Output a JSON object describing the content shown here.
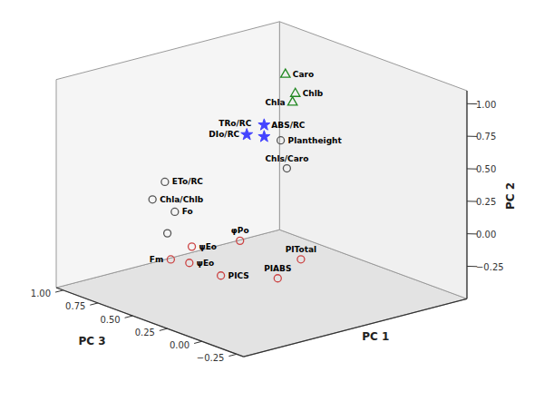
{
  "chart_data": {
    "type": "scatter3d",
    "xlabel": "PC 1",
    "ylabel": "PC 3",
    "zlabel": "PC 2",
    "xlim": [
      -1.0,
      0.8
    ],
    "ylim": [
      1.05,
      -0.3
    ],
    "zlim": [
      -0.5,
      1.1
    ],
    "yticks": [
      {
        "value": 1.0,
        "label": "1.00"
      },
      0.75,
      {
        "value": 0.5,
        "label": "0.50"
      },
      0.25,
      {
        "value": 0.0,
        "label": "0.00"
      },
      {
        "value": -0.25,
        "label": "−0.25"
      }
    ],
    "zticks": [
      {
        "value": -0.25,
        "label": "−0.25"
      },
      {
        "value": 0.0,
        "label": "0.00"
      },
      0.25,
      {
        "value": 0.5,
        "label": "0.50"
      },
      0.75,
      {
        "value": 1.0,
        "label": "1.00"
      }
    ],
    "grid": false,
    "series": [
      {
        "color": "#228822",
        "marker": "triangle-open",
        "labels": [
          "Caro",
          "Chlb",
          "Chla"
        ],
        "x": [
          -0.6,
          -0.4,
          -0.4
        ],
        "y": [
          0.65,
          0.4,
          0.42
        ],
        "z": [
          0.95,
          0.95,
          0.875
        ]
      },
      {
        "color": "#555555",
        "marker": "circle-open",
        "labels": [
          "Plantheight",
          "Chls/Caro",
          "ETo/RC",
          "Chla/Chlb",
          "Fo",
          null
        ],
        "x": [
          -0.45,
          -0.22,
          -0.02,
          0.08,
          -0.1,
          -0.04
        ],
        "y": [
          0.55,
          0.3,
          1.0,
          1.0,
          1.0,
          1.0
        ],
        "z": [
          0.52,
          0.46,
          0.13,
          0.02,
          -0.12,
          -0.27
        ]
      },
      {
        "color": "#4444ff",
        "marker": "star",
        "labels": [
          "ABS/RC",
          "DIo/RC",
          "TRo/RC"
        ],
        "x": [
          -0.82,
          -0.68,
          -0.82
        ],
        "y": [
          1.0,
          1.0,
          1.0
        ],
        "z": [
          0.37,
          0.33,
          0.28
        ]
      },
      {
        "color": "#cc4444",
        "marker": "circle-open",
        "labels": [
          "ψEo",
          "φPo",
          "PITotal",
          "Fm",
          "ψEo",
          "PIABS",
          "PICS"
        ],
        "x": [
          0.3,
          0.18,
          -0.02,
          0.38,
          0.32,
          0.1,
          0.2
        ],
        "y": [
          0.52,
          0.28,
          0.02,
          0.6,
          0.52,
          0.08,
          0.4
        ],
        "z": [
          -0.1,
          0.01,
          -0.08,
          -0.21,
          -0.22,
          -0.22,
          -0.3
        ]
      }
    ]
  }
}
